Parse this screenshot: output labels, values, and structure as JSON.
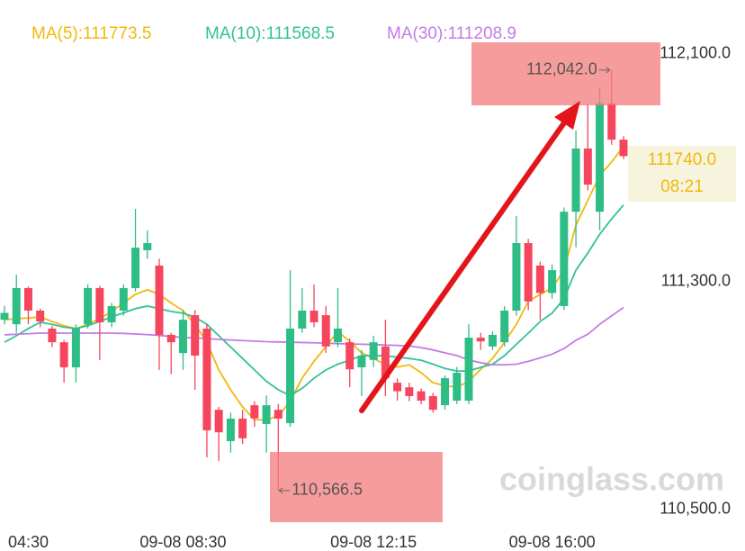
{
  "chart_data": {
    "type": "candlestick",
    "categories": [
      null,
      null,
      "04:30",
      null,
      null,
      null,
      null,
      null,
      null,
      null,
      null,
      null,
      null,
      null,
      null,
      "09-08 08:30",
      null,
      null,
      null,
      null,
      null,
      null,
      null,
      null,
      null,
      null,
      null,
      null,
      null,
      null,
      null,
      "09-08 12:15",
      null,
      null,
      null,
      null,
      null,
      null,
      null,
      null,
      null,
      null,
      null,
      null,
      null,
      null,
      "09-08 16:00",
      null,
      null,
      null,
      null,
      null,
      null
    ],
    "open": [
      111166,
      111150,
      111277,
      111198,
      111135,
      111087,
      110999,
      111150,
      111277,
      111157,
      111198,
      111277,
      111410,
      111356,
      111113,
      111049,
      111182,
      111135,
      110850,
      110740,
      110819,
      110866,
      110800,
      110850,
      110803,
      111135,
      111198,
      111182,
      111087,
      111087,
      110999,
      111025,
      111072,
      110945,
      110929,
      110915,
      110898,
      110866,
      110882,
      110882,
      111103,
      111072,
      111087,
      111198,
      111435,
      111356,
      111260,
      111214,
      111545,
      111767,
      111545,
      111925,
      111798
    ],
    "high": [
      111215,
      111324,
      111283,
      111205,
      111145,
      111095,
      111150,
      111290,
      111285,
      111225,
      111290,
      111555,
      111480,
      111380,
      111120,
      111200,
      111200,
      111150,
      110860,
      110840,
      110850,
      110880,
      110900,
      110870,
      111340,
      111277,
      111290,
      111214,
      111277,
      111100,
      111060,
      111110,
      111166,
      110960,
      110945,
      110925,
      110910,
      110970,
      111000,
      111150,
      111120,
      111125,
      111214,
      111530,
      111450,
      111370,
      111360,
      111560,
      111830,
      111925,
      111980,
      112042,
      111810
    ],
    "low": [
      111150,
      111120,
      111150,
      111140,
      111070,
      110945,
      110945,
      111135,
      111024,
      111140,
      111180,
      111265,
      111380,
      110990,
      110975,
      110990,
      110920,
      110683,
      110670,
      110700,
      110730,
      110790,
      110700,
      110566.5,
      110790,
      111120,
      111140,
      111050,
      111070,
      110929,
      110898,
      111000,
      110898,
      110882,
      110880,
      110870,
      110840,
      110850,
      110870,
      110870,
      111060,
      111060,
      111072,
      111180,
      111200,
      111166,
      111240,
      111200,
      111420,
      111620,
      111480,
      111780,
      111730
    ],
    "close": [
      111190,
      111277,
      111198,
      111160,
      111087,
      110999,
      111135,
      111277,
      111157,
      111214,
      111277,
      111419,
      111435,
      111113,
      111087,
      111166,
      111040,
      110778,
      110771,
      110819,
      110750,
      110820,
      110866,
      110819,
      111135,
      111198,
      111157,
      111072,
      111135,
      110992,
      111040,
      111087,
      110961,
      110915,
      110898,
      110882,
      110850,
      110961,
      110980,
      111103,
      111090,
      111113,
      111198,
      111435,
      111230,
      111260,
      111340,
      111545,
      111767,
      111640,
      111925,
      111798,
      111740
    ],
    "up_color": "#2ebd85",
    "down_color": "#f6465d",
    "series": [
      {
        "name": "MA(5):111773.5",
        "color": "#f0b90b",
        "values": [
          111166,
          111170,
          111172,
          111176,
          111160,
          111145,
          111135,
          111150,
          111170,
          111195,
          111225,
          111255,
          111271,
          111255,
          111225,
          111198,
          111150,
          111087,
          110990,
          110920,
          110860,
          110815,
          110815,
          110828,
          110880,
          110961,
          111020,
          111072,
          111125,
          111090,
          111050,
          111030,
          111008,
          111000,
          111008,
          110980,
          110945,
          110935,
          110929,
          110950,
          110992,
          111030,
          111087,
          111150,
          111230,
          111255,
          111277,
          111340,
          111498,
          111585,
          111672,
          111720,
          111773.5
        ]
      },
      {
        "name": "MA(10):111568.5",
        "color": "#32c19a",
        "values": [
          111087,
          111110,
          111135,
          111157,
          111150,
          111140,
          111135,
          111145,
          111160,
          111176,
          111190,
          111205,
          111214,
          111205,
          111195,
          111189,
          111175,
          111150,
          111110,
          111070,
          111030,
          110990,
          110950,
          110920,
          110900,
          110925,
          110961,
          110990,
          111010,
          111024,
          111040,
          111040,
          111040,
          111035,
          111030,
          111024,
          111010,
          110995,
          110986,
          110986,
          110999,
          111010,
          111040,
          111080,
          111119,
          111160,
          111189,
          111240,
          111340,
          111400,
          111466,
          111520,
          111568.5
        ]
      },
      {
        "name": "MA(30):111208.9",
        "color": "#c47be6",
        "values": [
          111113,
          111115,
          111117,
          111119,
          111119,
          111119,
          111119,
          111119,
          111119,
          111119,
          111118,
          111116,
          111114,
          111111,
          111107,
          111104,
          111102,
          111100,
          111097,
          111095,
          111093,
          111091,
          111089,
          111088,
          111087,
          111086,
          111085,
          111084,
          111082,
          111081,
          111080,
          111079,
          111077,
          111076,
          111074,
          111068,
          111060,
          111050,
          111040,
          111025,
          111015,
          111008,
          111008,
          111010,
          111020,
          111032,
          111045,
          111065,
          111094,
          111115,
          111150,
          111180,
          111208.9
        ]
      }
    ],
    "ylim": [
      110424,
      112288
    ],
    "yticks": [
      {
        "value": 112100,
        "label": "112,100.0"
      },
      {
        "value": 111300,
        "label": "111,300.0"
      },
      {
        "value": 110500,
        "label": "110,500.0"
      }
    ],
    "high_marker": {
      "value": 112042,
      "label": "112,042.0"
    },
    "low_marker": {
      "value": 110566.5,
      "label": "110,566.5"
    },
    "last_price": {
      "value": 111740,
      "label": "111740.0"
    },
    "countdown": "08:21",
    "watermark": "coinglass.com"
  }
}
